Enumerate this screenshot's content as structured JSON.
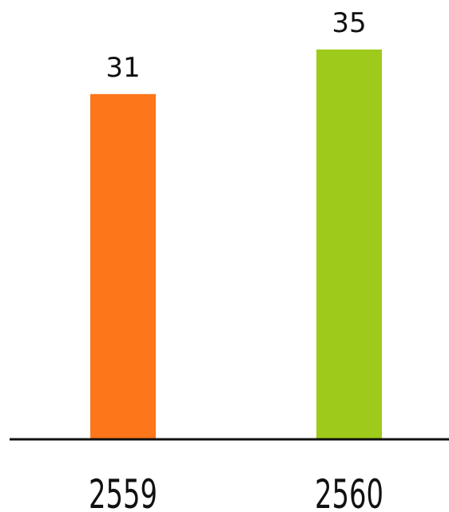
{
  "chart_data": {
    "type": "bar",
    "categories": [
      "2559",
      "2560"
    ],
    "values": [
      31,
      35
    ],
    "value_labels": [
      "31",
      "35"
    ],
    "colors": [
      "#fe761a",
      "#9ecb1b"
    ],
    "title": "",
    "xlabel": "",
    "ylabel": "",
    "ylim": [
      0,
      35
    ],
    "grid": false,
    "legend": "none"
  },
  "theme": {
    "baseline_color": "#111111",
    "text_color": "#111111",
    "background": "#ffffff"
  }
}
